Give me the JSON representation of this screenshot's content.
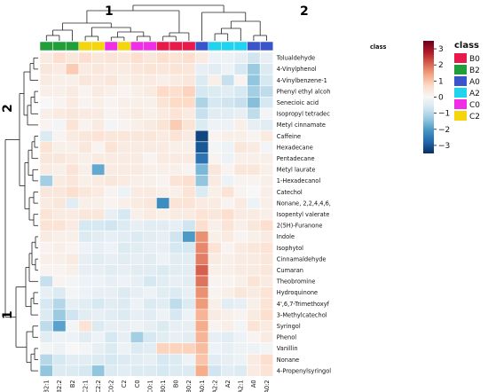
{
  "chart_data": {
    "type": "heatmap",
    "title": "",
    "columns": [
      "B2:1",
      "B2:2",
      "B2",
      "C2:1",
      "C2:2",
      "C0:2",
      "C2",
      "C0",
      "C0:1",
      "B0:1",
      "B0",
      "B0:2",
      "A0:1",
      "A2:2",
      "A2",
      "A2:1",
      "A0",
      "A0:2"
    ],
    "column_classes": [
      "B2",
      "B2",
      "B2",
      "C2",
      "C2",
      "C0",
      "C2",
      "C0",
      "C0",
      "B0",
      "B0",
      "B0",
      "A0",
      "A2",
      "A2",
      "A2",
      "A0",
      "A0"
    ],
    "rows": [
      "Tolualdehyde",
      "4-Vinylphenol",
      "4-Vinylbenzene-1",
      "Phenyl ethyl alcoh",
      "Senecioic acid",
      "Isopropyl tetradec",
      "Metyl cinnamate",
      "Caffeine",
      "Hexadecane",
      "Pentadecane",
      "Metyl laurate",
      "1-Hexadecanol",
      "Catechol",
      "Nonane, 2,2,4,4,6,",
      "Isopentyl valerate",
      "2(5H)-Furanone",
      "Indole",
      "Isophytol",
      "Cinnamaldehyde",
      "Cumaran",
      "Theobromine",
      "Hydroquinone",
      "4',6,7-Trimethoxyf",
      "3-Methylcatechol",
      "Syringol",
      "Phenol",
      "Vanillin",
      "Nonane",
      "4-Propenylsyringol"
    ],
    "values": [
      [
        0.3,
        0.6,
        0.4,
        0.6,
        0.4,
        0.5,
        0.4,
        0.6,
        0.4,
        0.6,
        0.5,
        0.6,
        0.3,
        -0.2,
        -0.2,
        -0.3,
        -0.7,
        -0.3
      ],
      [
        0.4,
        0.3,
        0.9,
        0.3,
        0.4,
        0.3,
        0.3,
        0.4,
        0.5,
        0.4,
        0.5,
        0.4,
        -0.3,
        -0.4,
        -0.2,
        -0.6,
        -1.3,
        -0.5
      ],
      [
        0.3,
        0.2,
        0.2,
        0.4,
        0.3,
        0.4,
        0.2,
        0.3,
        0.3,
        0.2,
        0.3,
        0.4,
        -0.5,
        0.2,
        -0.8,
        0.1,
        -1.4,
        -0.6
      ],
      [
        0.2,
        0.2,
        0.3,
        0.1,
        0.3,
        0.2,
        0.1,
        0.2,
        0.3,
        0.7,
        0.6,
        0.8,
        -0.6,
        -0.5,
        -0.4,
        -0.6,
        -1.2,
        -0.9
      ],
      [
        0.0,
        0.1,
        0.3,
        0.1,
        0.2,
        0.1,
        0.2,
        0.2,
        0.2,
        0.5,
        0.7,
        0.7,
        -1.1,
        -0.6,
        -0.7,
        -0.8,
        -1.5,
        -0.6
      ],
      [
        0.2,
        0.3,
        0.4,
        0.3,
        0.3,
        0.1,
        0.2,
        0.3,
        0.2,
        0.3,
        0.5,
        0.3,
        -0.8,
        -0.4,
        -0.4,
        -0.3,
        -0.9,
        -0.1
      ],
      [
        0.1,
        -0.1,
        0.5,
        0.1,
        0.3,
        -0.1,
        0.1,
        0.2,
        0.3,
        0.5,
        0.9,
        0.5,
        -0.5,
        -0.2,
        -0.2,
        0.2,
        -0.3,
        -0.4
      ],
      [
        -0.5,
        0.1,
        0.3,
        0.4,
        0.5,
        0.4,
        0.4,
        0.4,
        0.4,
        0.3,
        0.5,
        0.3,
        -3.2,
        0.1,
        0.2,
        0.2,
        0.1,
        0.3
      ],
      [
        0.5,
        0.2,
        0.2,
        0.4,
        0.1,
        0.5,
        0.3,
        0.3,
        0.3,
        0.3,
        0.2,
        0.2,
        -3.0,
        -0.1,
        -0.2,
        0.4,
        0.3,
        -0.1
      ],
      [
        0.4,
        0.4,
        0.3,
        0.2,
        0.3,
        0.3,
        0.3,
        0.3,
        0.1,
        0.3,
        0.3,
        0.3,
        -2.6,
        0.1,
        -0.2,
        0.2,
        0.2,
        0.2
      ],
      [
        0.3,
        0.2,
        0.5,
        0.2,
        -1.8,
        0.3,
        0.3,
        0.3,
        0.2,
        0.2,
        0.2,
        0.1,
        -1.6,
        0.4,
        0.1,
        0.4,
        0.4,
        0.2
      ],
      [
        -1.2,
        0.3,
        0.4,
        0.2,
        0.3,
        0.4,
        0.3,
        0.2,
        0.2,
        0.1,
        0.5,
        0.6,
        -1.4,
        0.3,
        -0.2,
        0.1,
        0.1,
        0.2
      ],
      [
        0.4,
        0.4,
        0.6,
        0.4,
        0.3,
        0.1,
        -0.2,
        0.3,
        0.3,
        0.2,
        0.2,
        0.5,
        -0.5,
        0.2,
        0.5,
        0.1,
        0.0,
        0.2
      ],
      [
        0.3,
        0.4,
        -0.4,
        0.2,
        0.2,
        0.1,
        0.2,
        0.3,
        0.4,
        -2.2,
        0.5,
        0.5,
        0.3,
        0.3,
        0.1,
        0.3,
        -0.2,
        0.2
      ],
      [
        0.5,
        0.3,
        0.3,
        0.4,
        0.4,
        -0.3,
        -0.6,
        0.2,
        0.3,
        0.2,
        0.3,
        0.3,
        0.5,
        0.4,
        0.6,
        0.3,
        0.3,
        0.2
      ],
      [
        0.5,
        0.5,
        0.3,
        -0.6,
        -0.6,
        -0.7,
        -0.5,
        -0.3,
        -0.4,
        -0.4,
        -0.3,
        -0.7,
        0.6,
        0.2,
        0.5,
        0.2,
        0.4,
        0.6
      ],
      [
        0.3,
        0.2,
        0.2,
        -0.5,
        -0.4,
        -0.3,
        -0.4,
        -0.5,
        -0.4,
        -0.3,
        -0.7,
        -2.0,
        1.6,
        0.2,
        0.3,
        0.1,
        0.2,
        0.3
      ],
      [
        0.1,
        0.2,
        0.1,
        -0.2,
        -0.3,
        -0.2,
        -0.5,
        -0.4,
        -0.3,
        -0.3,
        -0.6,
        -0.6,
        1.7,
        0.5,
        0.1,
        0.3,
        0.4,
        0.5
      ],
      [
        0.2,
        0.2,
        0.3,
        -0.3,
        -0.4,
        -0.3,
        -0.4,
        -0.3,
        -0.4,
        -0.2,
        -0.4,
        -0.4,
        1.8,
        0.3,
        0.2,
        0.3,
        0.3,
        0.4
      ],
      [
        0.1,
        0.1,
        0.2,
        -0.3,
        -0.3,
        -0.4,
        -0.3,
        -0.4,
        -0.4,
        -0.5,
        -0.4,
        -0.4,
        2.1,
        0.2,
        0.2,
        0.3,
        0.3,
        0.4
      ],
      [
        -0.8,
        0.1,
        -0.1,
        -0.2,
        -0.2,
        -0.3,
        -0.2,
        -0.3,
        -0.6,
        -0.4,
        -0.3,
        -0.4,
        1.9,
        0.1,
        0.1,
        0.2,
        0.5,
        0.3
      ],
      [
        -0.3,
        -0.5,
        -0.1,
        -0.2,
        -0.3,
        -0.3,
        -0.5,
        -0.3,
        -0.2,
        -0.4,
        -0.5,
        -0.3,
        1.6,
        0.1,
        0.2,
        0.4,
        0.3,
        0.5
      ],
      [
        -0.6,
        -1.0,
        -0.3,
        -0.4,
        -0.6,
        -0.4,
        -0.5,
        -0.2,
        -0.5,
        -0.4,
        -0.9,
        -0.5,
        1.5,
        0.2,
        -0.4,
        -0.3,
        0.2,
        0.5
      ],
      [
        -0.5,
        -1.3,
        -0.7,
        -0.4,
        -0.3,
        -0.4,
        -0.5,
        -0.3,
        -0.4,
        -0.2,
        -0.6,
        -0.2,
        1.2,
        0.3,
        0.2,
        0.1,
        0.3,
        0.6
      ],
      [
        -0.9,
        -1.9,
        -0.1,
        0.5,
        -0.5,
        -0.3,
        -0.3,
        -0.2,
        -0.3,
        -0.5,
        -0.3,
        -0.3,
        1.3,
        0.1,
        0.2,
        -0.1,
        0.5,
        0.3
      ],
      [
        -0.4,
        -0.2,
        -0.2,
        -0.4,
        -0.2,
        -0.6,
        -0.3,
        -1.2,
        -0.6,
        -0.4,
        -0.3,
        -0.4,
        1.2,
        -0.3,
        -0.4,
        -0.2,
        0.1,
        0.3
      ],
      [
        -0.1,
        -0.2,
        0.0,
        -0.1,
        -0.3,
        -0.5,
        -0.2,
        -0.5,
        -0.4,
        0.8,
        0.8,
        0.8,
        1.1,
        -0.2,
        -0.3,
        -0.2,
        -0.2,
        -0.1
      ],
      [
        -1.0,
        -0.6,
        -0.4,
        -0.4,
        -0.5,
        -0.6,
        -0.5,
        -0.4,
        -0.3,
        -0.6,
        -0.5,
        -0.2,
        1.0,
        -0.4,
        -0.3,
        -0.2,
        0.3,
        0.6
      ],
      [
        -1.4,
        -0.5,
        -0.5,
        -0.6,
        -1.4,
        -0.5,
        -0.4,
        -0.5,
        -0.5,
        -0.6,
        -0.5,
        -0.5,
        1.3,
        -0.7,
        -0.4,
        -0.5,
        0.3,
        0.5
      ]
    ],
    "color_scale": {
      "min": -3.5,
      "max": 3.5,
      "ticks": [
        3,
        2,
        1,
        0,
        -1,
        -2,
        -3
      ],
      "stops": [
        "#053061",
        "#2166ac",
        "#4393c3",
        "#92c5de",
        "#d1e5f0",
        "#f7f7f7",
        "#fddbc7",
        "#f4a582",
        "#d6604d",
        "#b2182b",
        "#67001f"
      ]
    },
    "class_legend": {
      "column_annotation_label": "class",
      "title": "class",
      "items": [
        {
          "name": "B0",
          "color": "#e8194b"
        },
        {
          "name": "B2",
          "color": "#1f9e3a"
        },
        {
          "name": "A0",
          "color": "#3a55cc"
        },
        {
          "name": "A2",
          "color": "#22d3f0"
        },
        {
          "name": "C0",
          "color": "#f02ee6"
        },
        {
          "name": "C2",
          "color": "#f5d60c"
        }
      ]
    },
    "dendrogram_labels": {
      "top_left": "1",
      "top_right": "2",
      "left_top": "2",
      "left_bottom": "1"
    }
  }
}
